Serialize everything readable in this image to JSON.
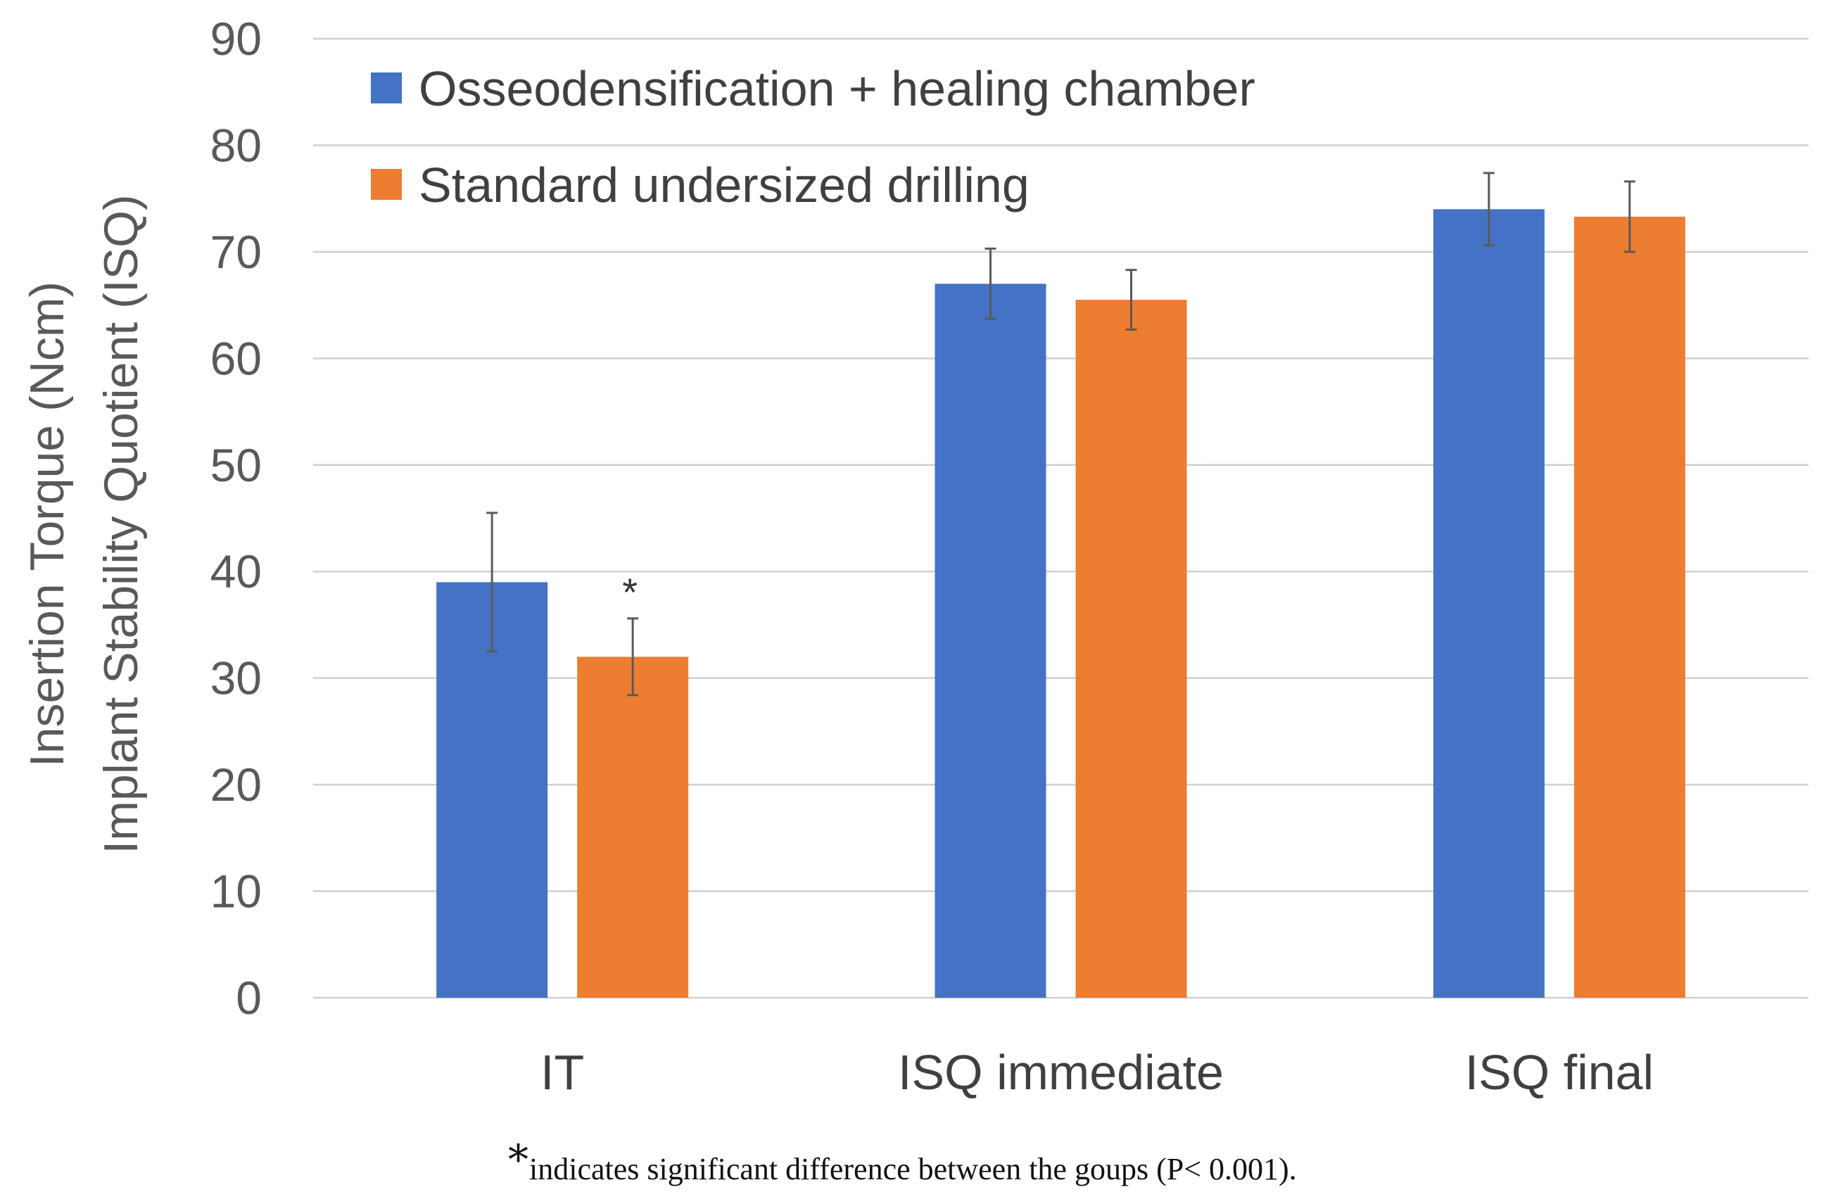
{
  "chart_data": {
    "type": "bar",
    "categories": [
      "IT",
      "ISQ immediate",
      "ISQ final"
    ],
    "series": [
      {
        "name": "Osseodensification + healing chamber",
        "color": "#4472C4",
        "values": [
          39,
          67,
          74
        ],
        "errors": [
          6.5,
          3.3,
          3.4
        ]
      },
      {
        "name": "Standard undersized drilling",
        "color": "#ED7D31",
        "values": [
          32,
          65.5,
          73.3
        ],
        "errors": [
          3.6,
          2.8,
          3.3
        ]
      }
    ],
    "ylim": [
      0,
      90
    ],
    "yticks": [
      0,
      10,
      20,
      30,
      40,
      50,
      60,
      70,
      80,
      90
    ],
    "ylabel_line1": "Insertion Torque (Ncm)",
    "ylabel_line2": "Implant Stability Quotient (ISQ)",
    "grid": true,
    "legend_position": "top-left",
    "annotations": [
      {
        "text": "*",
        "category": "IT",
        "series": 1
      }
    ],
    "footnote": {
      "symbol": "*",
      "text": "indicates significant difference between the goups (P< 0.001)."
    }
  }
}
